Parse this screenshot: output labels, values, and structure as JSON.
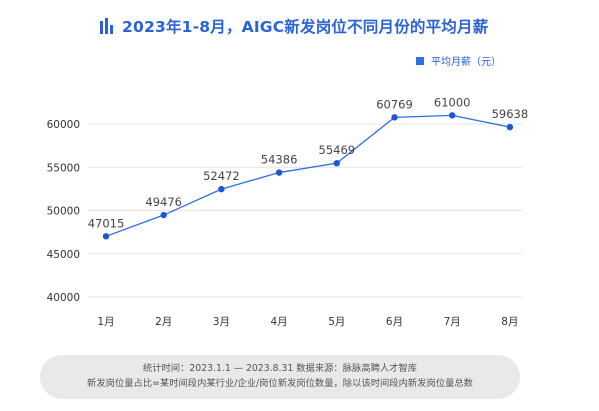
{
  "title": "2023年1-8月，AIGC新发岗位不同月份的平均月薪",
  "colors": {
    "accent": "#2f6fe4",
    "title": "#2b63d6",
    "point": "#1f56d2"
  },
  "icons": {
    "title": "bar-chart-icon"
  },
  "chart_data": {
    "type": "line",
    "categories": [
      "1月",
      "2月",
      "3月",
      "4月",
      "5月",
      "6月",
      "7月",
      "8月"
    ],
    "series": [
      {
        "name": "平均月薪（元）",
        "values": [
          47015,
          49476,
          52472,
          54386,
          55469,
          60769,
          61000,
          59638
        ]
      }
    ],
    "data_labels": [
      "47015",
      "49476",
      "52472",
      "54386",
      "55469",
      "60769",
      "61000",
      "59638"
    ],
    "ylim": [
      40000,
      60000
    ],
    "yticks": [
      40000,
      45000,
      50000,
      55000,
      60000
    ],
    "ytick_labels": [
      "40000",
      "45000",
      "50000",
      "55000",
      "60000"
    ],
    "grid": true,
    "legend_position": "top-right"
  },
  "footer": {
    "line1": "统计时间：2023.1.1 — 2023.8.31  数据来源：脉脉高聘人才智库",
    "line2": "新发岗位量占比=某时间段内某行业/企业/岗位新发岗位数量，除以该时间段内新发岗位量总数"
  }
}
